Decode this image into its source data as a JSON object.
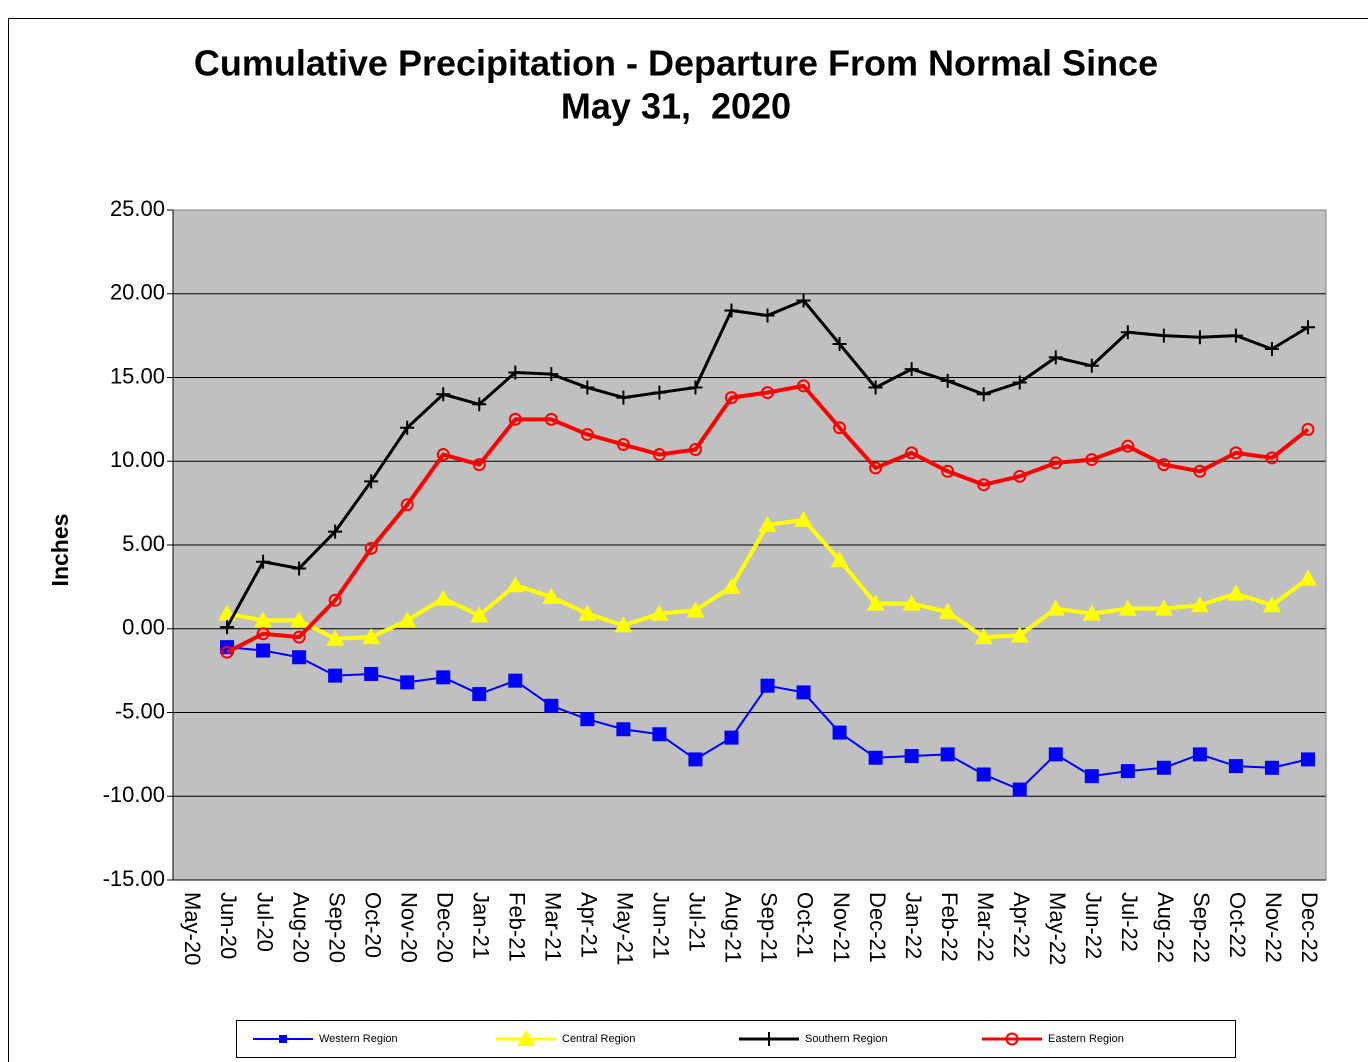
{
  "chart_data": {
    "type": "line",
    "title": [
      "Cumulative Precipitation - Departure From Normal Since",
      "May 31,  2020"
    ],
    "y_label": "Inches",
    "categories": [
      "May-20",
      "Jun-20",
      "Jul-20",
      "Aug-20",
      "Sep-20",
      "Oct-20",
      "Nov-20",
      "Dec-20",
      "Jan-21",
      "Feb-21",
      "Mar-21",
      "Apr-21",
      "May-21",
      "Jun-21",
      "Jul-21",
      "Aug-21",
      "Sep-21",
      "Oct-21",
      "Nov-21",
      "Dec-21",
      "Jan-22",
      "Feb-22",
      "Mar-22",
      "Apr-22",
      "May-22",
      "Jun-22",
      "Jul-22",
      "Aug-22",
      "Sep-22",
      "Oct-22",
      "Nov-22",
      "Dec-22"
    ],
    "series": [
      {
        "name": "Western Region",
        "color": "#0000ff",
        "marker": "square",
        "line_width": 2,
        "values": [
          null,
          -1.1,
          -1.3,
          -1.7,
          -2.8,
          -2.7,
          -3.2,
          -2.9,
          -3.9,
          -3.1,
          -4.6,
          -5.4,
          -6.0,
          -6.3,
          -7.8,
          -6.5,
          -3.4,
          -3.8,
          -6.2,
          -7.7,
          -7.6,
          -7.5,
          -8.7,
          -9.6,
          -7.5,
          -8.8,
          -8.5,
          -8.3,
          -7.5,
          -8.2,
          -8.3,
          -7.8
        ]
      },
      {
        "name": "Central Region",
        "color": "#ffff00",
        "marker": "triangle",
        "line_width": 4,
        "values": [
          null,
          0.9,
          0.5,
          0.5,
          -0.6,
          -0.5,
          0.5,
          1.8,
          0.8,
          2.6,
          1.9,
          0.9,
          0.2,
          0.9,
          1.1,
          2.5,
          6.2,
          6.5,
          4.1,
          1.5,
          1.5,
          1.0,
          -0.5,
          -0.4,
          1.2,
          0.9,
          1.2,
          1.2,
          1.4,
          2.1,
          1.4,
          3.0
        ]
      },
      {
        "name": "Southern Region",
        "color": "#000000",
        "marker": "plus",
        "line_width": 3,
        "values": [
          null,
          0.1,
          4.0,
          3.6,
          5.8,
          8.8,
          12.0,
          14.0,
          13.4,
          15.3,
          15.2,
          14.4,
          13.8,
          14.1,
          14.4,
          19.0,
          18.7,
          19.6,
          17.0,
          14.4,
          15.5,
          14.8,
          14.0,
          14.7,
          16.2,
          15.7,
          17.7,
          17.5,
          17.4,
          17.5,
          16.7,
          18.0
        ]
      },
      {
        "name": "Eastern Region",
        "color": "#ff0000",
        "marker": "circle",
        "line_width": 4,
        "values": [
          null,
          -1.4,
          -0.3,
          -0.5,
          1.7,
          4.8,
          7.4,
          10.4,
          9.8,
          12.5,
          12.5,
          11.6,
          11.0,
          10.4,
          10.7,
          13.8,
          14.1,
          14.5,
          12.0,
          9.6,
          10.5,
          9.4,
          8.6,
          9.1,
          9.9,
          10.1,
          10.9,
          9.8,
          9.4,
          10.5,
          10.2,
          11.9
        ]
      }
    ],
    "ylim": [
      -15,
      25
    ],
    "yticks": [
      {
        "value": -15,
        "label": "-15.00"
      },
      {
        "value": -10,
        "label": "-10.00"
      },
      {
        "value": -5,
        "label": "-5.00"
      },
      {
        "value": 0,
        "label": "0.00"
      },
      {
        "value": 5,
        "label": "5.00"
      },
      {
        "value": 10,
        "label": "10.00"
      },
      {
        "value": 15,
        "label": "15.00"
      },
      {
        "value": 20,
        "label": "20.00"
      },
      {
        "value": 25,
        "label": "25.00"
      }
    ],
    "grid": true,
    "plot_background": "#c0c0c0"
  }
}
